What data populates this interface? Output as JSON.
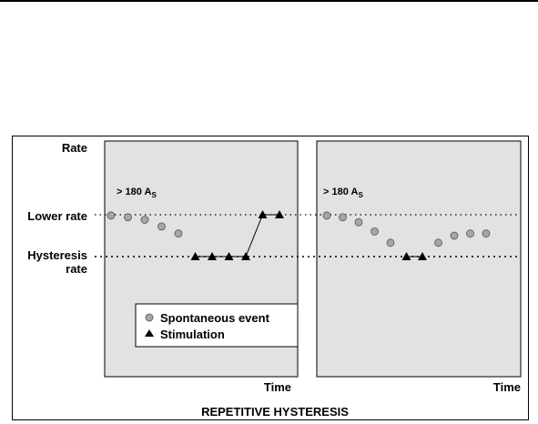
{
  "labels": {
    "rate": "Rate",
    "lower_rate": "Lower rate",
    "hysteresis_1": "Hysteresis",
    "hysteresis_2": "rate",
    "time_left": "Time",
    "time_right": "Time",
    "title": "REPETITIVE HYSTERESIS"
  },
  "panels": [
    {
      "annotation": "> 180 A",
      "annotation_sub": "S",
      "events": [
        {
          "kind": "spontaneous",
          "level": 0.98
        },
        {
          "kind": "spontaneous",
          "level": 0.94
        },
        {
          "kind": "spontaneous",
          "level": 0.88
        },
        {
          "kind": "spontaneous",
          "level": 0.72
        },
        {
          "kind": "spontaneous",
          "level": 0.55
        },
        {
          "kind": "stimulation",
          "level": 0
        },
        {
          "kind": "stimulation",
          "level": 0
        },
        {
          "kind": "stimulation",
          "level": 0
        },
        {
          "kind": "stimulation",
          "level": 0
        },
        {
          "kind": "stimulation",
          "level": 1
        },
        {
          "kind": "stimulation",
          "level": 1
        }
      ]
    },
    {
      "annotation": "> 180 A",
      "annotation_sub": "S",
      "events": [
        {
          "kind": "spontaneous",
          "level": 0.98
        },
        {
          "kind": "spontaneous",
          "level": 0.94
        },
        {
          "kind": "spontaneous",
          "level": 0.82
        },
        {
          "kind": "spontaneous",
          "level": 0.6
        },
        {
          "kind": "spontaneous",
          "level": 0.33
        },
        {
          "kind": "stimulation",
          "level": 0
        },
        {
          "kind": "stimulation",
          "level": 0
        },
        {
          "kind": "spontaneous",
          "level": 0.33
        },
        {
          "kind": "spontaneous",
          "level": 0.5
        },
        {
          "kind": "spontaneous",
          "level": 0.55
        },
        {
          "kind": "spontaneous",
          "level": 0.55
        }
      ]
    }
  ],
  "legend": {
    "spontaneous": "Spontaneous event",
    "stimulation": "Stimulation"
  },
  "colors": {
    "panel_fill": "#e2e2e2",
    "dot_fill": "#a6a6a6",
    "ink": "#000000"
  }
}
